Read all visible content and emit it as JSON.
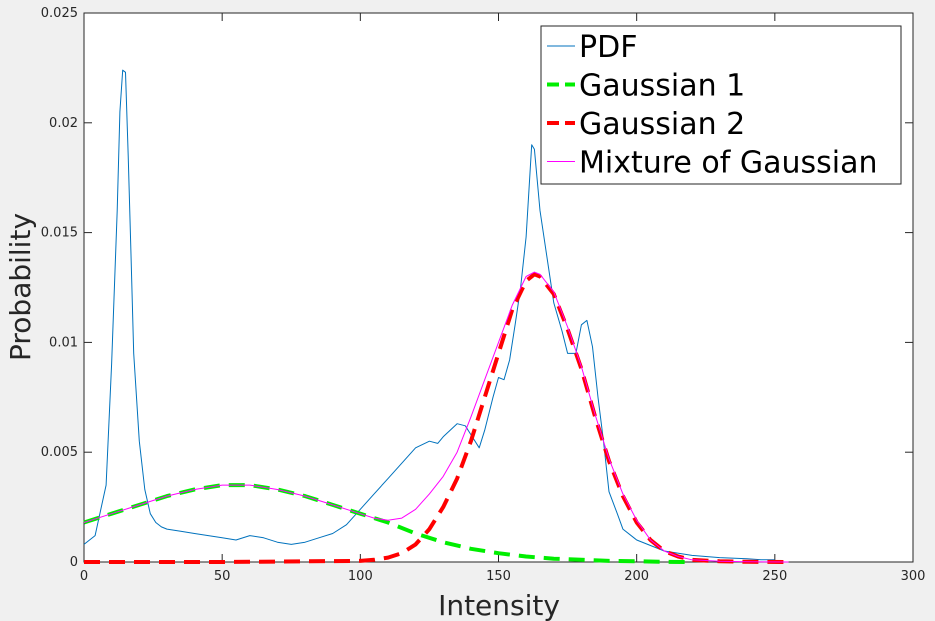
{
  "chart_data": {
    "type": "line",
    "title": "",
    "xlabel": "Intensity",
    "ylabel": "Probability",
    "xlim": [
      0,
      300
    ],
    "ylim": [
      0,
      0.025
    ],
    "xticks": [
      0,
      50,
      100,
      150,
      200,
      250,
      300
    ],
    "xtick_labels": [
      "0",
      "50",
      "100",
      "150",
      "200",
      "250",
      "300"
    ],
    "yticks": [
      0,
      0.005,
      0.01,
      0.015,
      0.02,
      0.025
    ],
    "ytick_labels": [
      "0",
      "0.005",
      "0.01",
      "0.015",
      "0.02",
      "0.025"
    ],
    "grid": false,
    "legend_position": "top-right",
    "series": [
      {
        "name": "PDF",
        "color": "#0072bd",
        "style": "solid",
        "x": [
          0,
          4,
          8,
          10,
          12,
          13,
          14,
          15,
          16,
          17,
          18,
          20,
          22,
          24,
          26,
          28,
          30,
          35,
          40,
          45,
          50,
          55,
          60,
          65,
          70,
          75,
          80,
          85,
          90,
          95,
          100,
          105,
          110,
          115,
          120,
          125,
          128,
          130,
          135,
          138,
          140,
          143,
          145,
          148,
          150,
          152,
          154,
          156,
          158,
          160,
          162,
          163,
          165,
          168,
          170,
          173,
          175,
          178,
          180,
          182,
          184,
          186,
          188,
          190,
          193,
          195,
          200,
          210,
          220,
          230,
          240,
          245,
          248,
          250
        ],
        "y": [
          0.0008,
          0.0012,
          0.0035,
          0.009,
          0.016,
          0.0205,
          0.0224,
          0.0223,
          0.0185,
          0.014,
          0.0095,
          0.0055,
          0.0033,
          0.0022,
          0.0018,
          0.0016,
          0.0015,
          0.0014,
          0.0013,
          0.0012,
          0.0011,
          0.001,
          0.0012,
          0.0011,
          0.0009,
          0.0008,
          0.0009,
          0.0011,
          0.0013,
          0.0017,
          0.0024,
          0.0031,
          0.0038,
          0.0045,
          0.0052,
          0.0055,
          0.0054,
          0.0057,
          0.0063,
          0.0062,
          0.0058,
          0.0052,
          0.006,
          0.0075,
          0.0084,
          0.0083,
          0.0092,
          0.0108,
          0.0125,
          0.0148,
          0.019,
          0.0188,
          0.016,
          0.0135,
          0.0118,
          0.0105,
          0.0095,
          0.0095,
          0.0108,
          0.011,
          0.0098,
          0.0075,
          0.0055,
          0.0032,
          0.0022,
          0.0015,
          0.001,
          0.0005,
          0.0003,
          0.0002,
          0.00015,
          0.0001,
          0.0001,
          0.0001
        ]
      },
      {
        "name": "Gaussian 1",
        "color": "#00ee00",
        "style": "dashed",
        "x": [
          0,
          10,
          20,
          30,
          40,
          50,
          55,
          60,
          70,
          80,
          90,
          100,
          110,
          120,
          130,
          140,
          150,
          160,
          170,
          180,
          190,
          200,
          210,
          220
        ],
        "y": [
          0.0018,
          0.0022,
          0.0026,
          0.003,
          0.0033,
          0.0035,
          0.0035,
          0.0035,
          0.0033,
          0.003,
          0.0026,
          0.0022,
          0.0018,
          0.0013,
          0.0009,
          0.0006,
          0.0004,
          0.00025,
          0.00015,
          0.0001,
          5e-05,
          3e-05,
          1e-05,
          0.0
        ]
      },
      {
        "name": "Gaussian 2",
        "color": "#ff0000",
        "style": "dashed",
        "x": [
          0,
          50,
          100,
          105,
          110,
          115,
          120,
          125,
          130,
          135,
          140,
          145,
          150,
          155,
          160,
          163,
          165,
          170,
          175,
          180,
          185,
          190,
          195,
          200,
          205,
          210,
          215,
          220,
          230,
          240,
          255
        ],
        "y": [
          0,
          0,
          5e-05,
          0.0001,
          0.0002,
          0.0004,
          0.0008,
          0.0015,
          0.0025,
          0.0038,
          0.0055,
          0.0075,
          0.0095,
          0.0115,
          0.0128,
          0.0131,
          0.013,
          0.0122,
          0.0106,
          0.0088,
          0.0066,
          0.0046,
          0.003,
          0.0018,
          0.001,
          0.0005,
          0.00025,
          0.0001,
          3e-05,
          1e-05,
          0
        ]
      },
      {
        "name": "Mixture of Gaussian",
        "color": "#ff00ff",
        "style": "solid",
        "x": [
          0,
          10,
          20,
          30,
          40,
          50,
          55,
          60,
          70,
          80,
          90,
          100,
          105,
          110,
          115,
          120,
          125,
          130,
          135,
          140,
          145,
          150,
          155,
          160,
          163,
          165,
          170,
          175,
          180,
          185,
          190,
          195,
          200,
          205,
          210,
          215,
          220,
          230,
          240,
          255
        ],
        "y": [
          0.0018,
          0.0022,
          0.0026,
          0.003,
          0.0033,
          0.0035,
          0.0035,
          0.0035,
          0.0033,
          0.003,
          0.0026,
          0.0022,
          0.002,
          0.0019,
          0.002,
          0.0024,
          0.0031,
          0.0039,
          0.005,
          0.0066,
          0.0083,
          0.01,
          0.0117,
          0.013,
          0.0132,
          0.0131,
          0.0123,
          0.0107,
          0.0089,
          0.0067,
          0.0047,
          0.0031,
          0.0019,
          0.001,
          0.0005,
          0.00025,
          0.0001,
          3e-05,
          1e-05,
          0
        ]
      }
    ]
  }
}
